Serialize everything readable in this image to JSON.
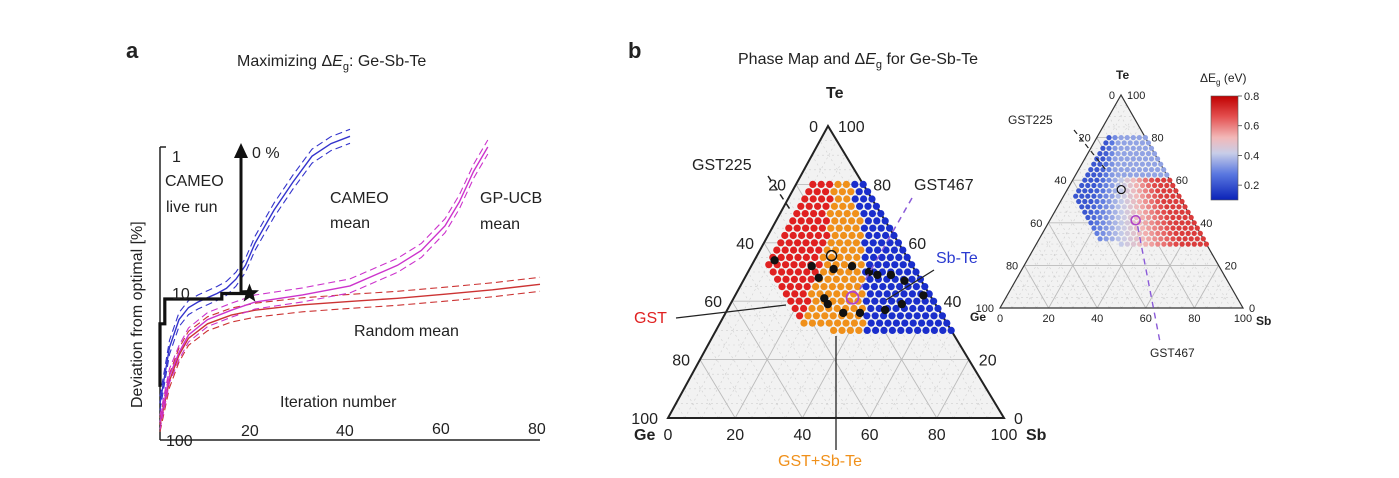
{
  "figure": {
    "panel_a_letter": "a",
    "panel_b_letter": "b",
    "panel_a_title_prefix": "Maximizing Δ",
    "panel_a_title_var": "E",
    "panel_a_title_sub": "g",
    "panel_a_title_suffix": ": Ge-Sb-Te",
    "panel_b_title_prefix": "Phase Map and Δ",
    "panel_b_title_var": "E",
    "panel_b_title_sub": "g",
    "panel_b_title_suffix": " for Ge-Sb-Te"
  },
  "colors": {
    "cameo": "#3333cc",
    "gpucb": "#cc33cc",
    "random": "#cc3333",
    "gst": "#e02020",
    "gst_sbte": "#f0901a",
    "sbte": "#1a2ecc",
    "boundary": "#111111",
    "axis": "#222222",
    "label_gst": "#e02020",
    "label_gst_sbte": "#f0901a",
    "label_sbte": "#2a3ad0"
  },
  "chart_data": [
    {
      "type": "line",
      "xlabel": "Iteration number",
      "ylabel": "Deviation from optimal [%]",
      "xlim": [
        0,
        80
      ],
      "xticks": [
        "20",
        "40",
        "60",
        "80"
      ],
      "yticks": [
        "1",
        "10",
        "100"
      ],
      "ylim": [
        100,
        0
      ],
      "y_scale": "log",
      "yticks_left_labels": [
        "1",
        "10",
        "100"
      ],
      "arrow_label": "0 %",
      "annotations": [
        "CAMEO",
        "live run",
        "CAMEO",
        "mean",
        "GP-UCB",
        "mean",
        "Random mean"
      ],
      "series": [
        {
          "name": "CAMEO live run",
          "x": [
            0,
            0,
            1,
            1,
            13,
            13,
            18,
            18
          ],
          "y": [
            42,
            15,
            15,
            10,
            10,
            9.2,
            9.2,
            0
          ]
        },
        {
          "name": "CAMEO mean",
          "x": [
            0,
            2,
            4,
            6,
            8,
            10,
            12,
            14,
            16,
            18,
            20,
            24,
            28,
            32,
            36,
            40
          ],
          "y": [
            55,
            22,
            14,
            11.5,
            10.5,
            9.8,
            9.2,
            8.5,
            7.4,
            6.0,
            4.3,
            2.6,
            1.7,
            1.15,
            0.95,
            0.85
          ]
        },
        {
          "name": "GP-UCB mean",
          "x": [
            0,
            2,
            4,
            6,
            10,
            15,
            20,
            30,
            40,
            50,
            55,
            60,
            63,
            66,
            69
          ],
          "y": [
            75,
            35,
            24,
            18,
            14,
            12,
            10.5,
            9.4,
            8.2,
            6.0,
            4.8,
            3.3,
            2.3,
            1.45,
            1.0
          ]
        },
        {
          "name": "Random mean",
          "x": [
            0,
            2,
            4,
            6,
            10,
            15,
            20,
            30,
            40,
            50,
            60,
            70,
            80
          ],
          "y": [
            78,
            38,
            25,
            19,
            15,
            13,
            12,
            11,
            10.4,
            9.9,
            9.3,
            8.7,
            8.0
          ]
        }
      ]
    },
    {
      "type": "scatter",
      "subtype": "ternary phase map",
      "axes": [
        "Ge",
        "Sb",
        "Te"
      ],
      "edge_ticks": [
        "0",
        "20",
        "40",
        "60",
        "80",
        "100"
      ],
      "phases": [
        "GST",
        "GST+Sb-Te",
        "Sb-Te"
      ],
      "labels": {
        "gst": "GST",
        "gst_sbte": "GST+Sb-Te",
        "sbte": "Sb-Te",
        "gst225": "GST225",
        "gst467": "GST467"
      },
      "compounds": [
        {
          "name": "GST225",
          "ge": 22.2,
          "sb": 22.2,
          "te": 55.6
        },
        {
          "name": "GST467",
          "ge": 23.5,
          "sb": 35.3,
          "te": 41.2
        }
      ],
      "phase_boundary_1": [
        [
          40,
          6,
          54
        ],
        [
          30,
          18,
          52
        ],
        [
          30,
          22,
          48
        ],
        [
          32,
          27,
          41
        ],
        [
          32,
          29,
          39
        ],
        [
          29,
          35,
          36
        ],
        [
          24,
          40,
          36
        ],
        [
          16,
          47,
          37
        ],
        [
          10,
          51,
          39
        ]
      ],
      "phase_boundary_2": [
        [
          24,
          25,
          51
        ],
        [
          18,
          30,
          52
        ],
        [
          14,
          36,
          50
        ],
        [
          12,
          39,
          49
        ],
        [
          8,
          43,
          49
        ],
        [
          5,
          48,
          47
        ],
        [
          2,
          56,
          42
        ]
      ],
      "region": {
        "ge_max": 44,
        "te_min": 30,
        "te_max": 80,
        "ge_plus_sb_min": 20
      }
    },
    {
      "type": "heatmap",
      "subtype": "ternary ΔEg map",
      "axes": [
        "Ge",
        "Sb",
        "Te"
      ],
      "edge_ticks": [
        "0",
        "20",
        "40",
        "60",
        "80",
        "100"
      ],
      "colorbar_label_prefix": "ΔE",
      "colorbar_label_sub": "g",
      "colorbar_label_suffix": " (eV)",
      "colorbar_ticks": [
        "0.2",
        "0.4",
        "0.6",
        "0.8"
      ],
      "colorbar_range": [
        0.1,
        0.8
      ],
      "labels": {
        "gst225": "GST225",
        "gst467": "GST467"
      }
    }
  ]
}
